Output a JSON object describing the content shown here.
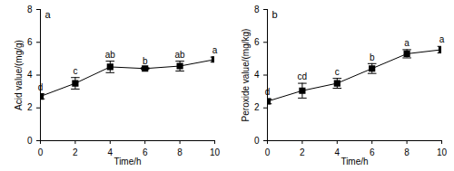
{
  "chart_data": [
    {
      "type": "line",
      "title": "a",
      "x": [
        0,
        2,
        4,
        6,
        8,
        10
      ],
      "values": [
        2.7,
        3.5,
        4.5,
        4.4,
        4.55,
        4.95
      ],
      "errors": [
        0.15,
        0.35,
        0.35,
        0.05,
        0.3,
        0.15
      ],
      "significance_letters": [
        "d",
        "c",
        "ab",
        "b",
        "ab",
        "a"
      ],
      "xlabel": "Time/h",
      "ylabel": "Acid value/(mg/g)",
      "xlim": [
        0,
        10
      ],
      "xticks": [
        0,
        2,
        4,
        6,
        8,
        10
      ],
      "ylim": [
        0,
        8
      ],
      "yticks": [
        0,
        2,
        4,
        6,
        8
      ],
      "color": "#000000",
      "marker": "square",
      "grid": false
    },
    {
      "type": "line",
      "title": "b",
      "x": [
        0,
        2,
        4,
        6,
        8,
        10
      ],
      "values": [
        2.4,
        3.05,
        3.5,
        4.4,
        5.3,
        5.55
      ],
      "errors": [
        0.15,
        0.45,
        0.3,
        0.3,
        0.25,
        0.2
      ],
      "significance_letters": [
        "d",
        "cd",
        "c",
        "b",
        "a",
        "a"
      ],
      "xlabel": "Time/h",
      "ylabel": "Peroxide value/(mg/kg)",
      "xlim": [
        0,
        10
      ],
      "xticks": [
        0,
        2,
        4,
        6,
        8,
        10
      ],
      "ylim": [
        0,
        8
      ],
      "yticks": [
        0,
        2,
        4,
        6,
        8
      ],
      "color": "#000000",
      "marker": "square",
      "grid": false
    }
  ]
}
